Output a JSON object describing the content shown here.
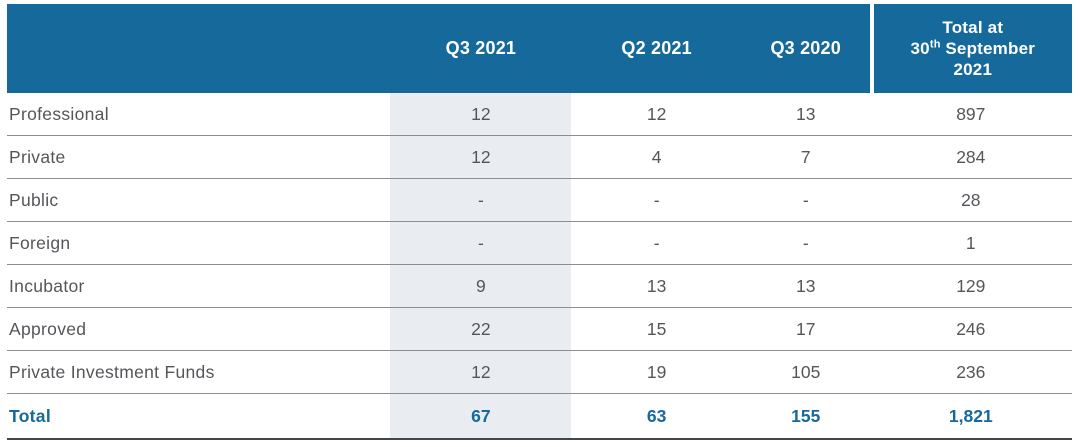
{
  "table": {
    "header": {
      "label_col": "",
      "q3_2021": "Q3 2021",
      "q2_2021": "Q2 2021",
      "q3_2020": "Q3 2020",
      "total": {
        "line1": "Total at",
        "day": "30",
        "ordinal": "th",
        "month": "September",
        "year": "2021"
      }
    },
    "rows": [
      {
        "label": "Professional",
        "values": [
          "12",
          "12",
          "13",
          "897"
        ]
      },
      {
        "label": "Private",
        "values": [
          "12",
          "4",
          "7",
          "284"
        ]
      },
      {
        "label": "Public",
        "values": [
          "-",
          "-",
          "-",
          "28"
        ]
      },
      {
        "label": "Foreign",
        "values": [
          "-",
          "-",
          "-",
          "1"
        ]
      },
      {
        "label": "Incubator",
        "values": [
          "9",
          "13",
          "13",
          "129"
        ]
      },
      {
        "label": "Approved",
        "values": [
          "22",
          "15",
          "17",
          "246"
        ]
      },
      {
        "label": "Private Investment Funds",
        "values": [
          "12",
          "19",
          "105",
          "236"
        ]
      },
      {
        "label": "Total",
        "values": [
          "67",
          "63",
          "155",
          "1,821"
        ]
      }
    ],
    "colors": {
      "header_bg": "#15699B",
      "highlight_column_bg": "#E9EDF2",
      "body_text": "#54565A",
      "total_text": "#15699B",
      "row_divider": "#8A8E94",
      "bottom_border": "#41474D"
    }
  }
}
